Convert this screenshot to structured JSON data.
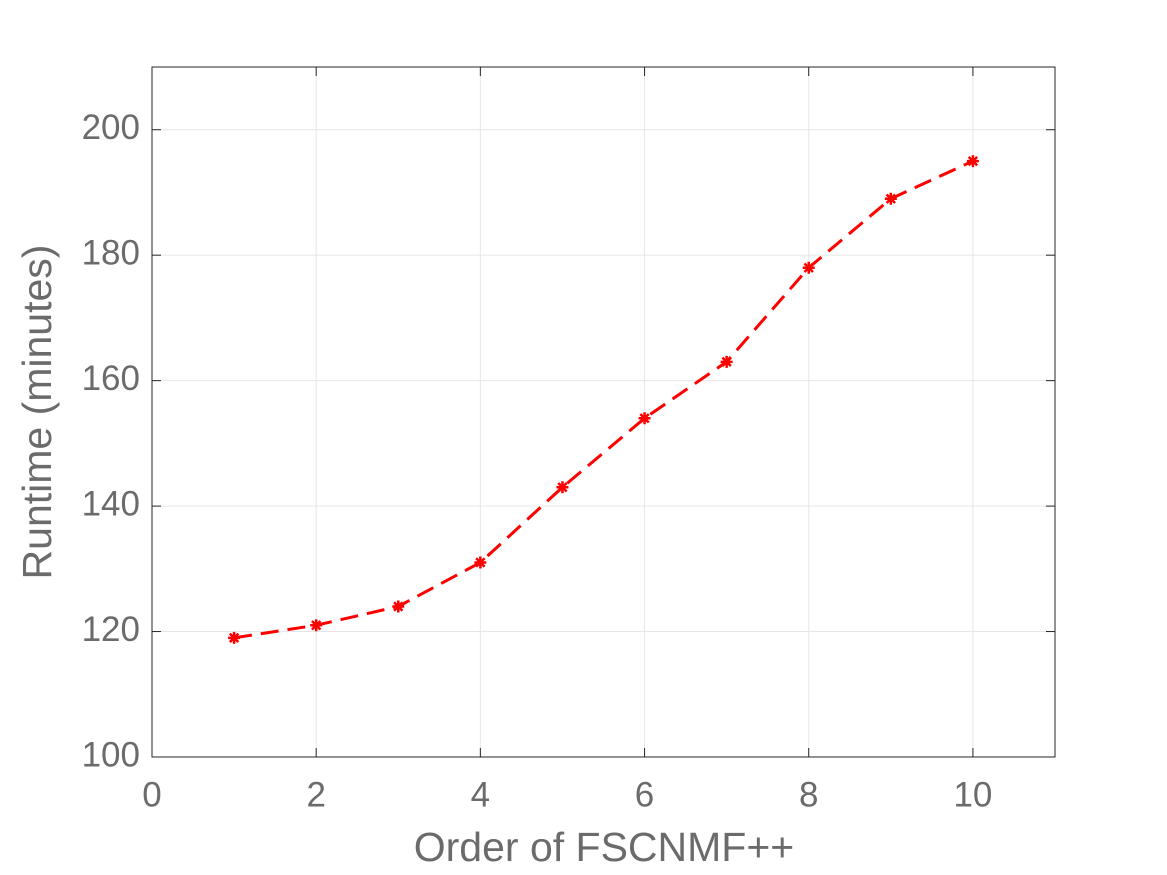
{
  "chart_data": {
    "type": "line",
    "x_label": "Order of FSCNMF++",
    "y_label": "Runtime (minutes)",
    "x": [
      1,
      2,
      3,
      4,
      5,
      6,
      7,
      8,
      9,
      10
    ],
    "series": [
      {
        "color": "#ff0000",
        "values": [
          119,
          121,
          124,
          131,
          143,
          154,
          163,
          178,
          189,
          195
        ]
      }
    ],
    "xlim": [
      0,
      11
    ],
    "xticks": [
      0,
      2,
      4,
      6,
      8,
      10
    ],
    "ylim": [
      100,
      210
    ],
    "yticks": [
      100,
      120,
      140,
      160,
      180,
      200
    ],
    "grid": true
  }
}
